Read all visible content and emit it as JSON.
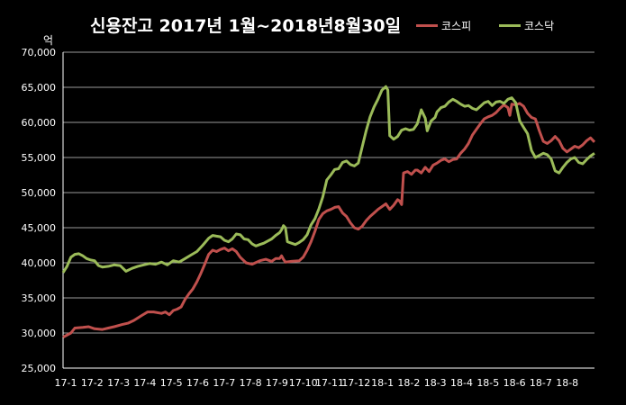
{
  "chart_data": {
    "type": "line",
    "title": "신용잔고 2017년 1월~2018년8월30일",
    "unit_label": "억",
    "ylim": [
      25000,
      70000
    ],
    "yticks": [
      "25,000",
      "30,000",
      "35,000",
      "40,000",
      "45,000",
      "50,000",
      "55,000",
      "60,000",
      "65,000",
      "70,000"
    ],
    "ytick_values": [
      25000,
      30000,
      35000,
      40000,
      45000,
      50000,
      55000,
      60000,
      65000,
      70000
    ],
    "xticks": [
      "17-1",
      "17-2",
      "17-3",
      "17-4",
      "17-5",
      "17-6",
      "17-7",
      "17-8",
      "17-9",
      "17-10",
      "17-11",
      "17-12",
      "18-1",
      "18-2",
      "18-3",
      "18-4",
      "18-5",
      "18-6",
      "18-7",
      "18-8"
    ],
    "grid": true,
    "legend_position": "top-right",
    "series": [
      {
        "name": "코스피",
        "color": "#c0504d",
        "values": [
          [
            0,
            29400
          ],
          [
            0.4,
            30000
          ],
          [
            0.6,
            30700
          ],
          [
            1,
            30800
          ],
          [
            1.3,
            30900
          ],
          [
            1.6,
            30600
          ],
          [
            2,
            30500
          ],
          [
            2.3,
            30700
          ],
          [
            2.6,
            30900
          ],
          [
            3,
            31200
          ],
          [
            3.3,
            31400
          ],
          [
            3.6,
            31800
          ],
          [
            4,
            32500
          ],
          [
            4.3,
            33000
          ],
          [
            4.6,
            33000
          ],
          [
            5,
            32800
          ],
          [
            5.2,
            33000
          ],
          [
            5.4,
            32600
          ],
          [
            5.6,
            33200
          ],
          [
            5.8,
            33400
          ],
          [
            6,
            33700
          ],
          [
            6.2,
            34800
          ],
          [
            6.4,
            35600
          ],
          [
            6.6,
            36300
          ],
          [
            6.8,
            37300
          ],
          [
            7,
            38500
          ],
          [
            7.2,
            39800
          ],
          [
            7.4,
            41200
          ],
          [
            7.6,
            41800
          ],
          [
            7.8,
            41600
          ],
          [
            8,
            41900
          ],
          [
            8.2,
            42100
          ],
          [
            8.4,
            41700
          ],
          [
            8.6,
            42000
          ],
          [
            8.8,
            41600
          ],
          [
            9,
            40800
          ],
          [
            9.3,
            40000
          ],
          [
            9.6,
            39800
          ],
          [
            10,
            40300
          ],
          [
            10.3,
            40500
          ],
          [
            10.6,
            40200
          ],
          [
            10.8,
            40600
          ],
          [
            11,
            40600
          ],
          [
            11.1,
            41000
          ],
          [
            11.2,
            40500
          ],
          [
            11.3,
            40100
          ],
          [
            11.6,
            40200
          ],
          [
            12,
            40300
          ],
          [
            12.2,
            40800
          ],
          [
            12.4,
            41800
          ],
          [
            12.6,
            43000
          ],
          [
            12.8,
            44500
          ],
          [
            13,
            46200
          ],
          [
            13.2,
            47000
          ],
          [
            13.4,
            47400
          ],
          [
            13.6,
            47600
          ],
          [
            13.8,
            47900
          ],
          [
            14,
            48000
          ],
          [
            14.2,
            47100
          ],
          [
            14.4,
            46600
          ],
          [
            14.6,
            45700
          ],
          [
            14.8,
            45000
          ],
          [
            15,
            44800
          ],
          [
            15.2,
            45200
          ],
          [
            15.4,
            46000
          ],
          [
            15.6,
            46600
          ],
          [
            15.8,
            47100
          ],
          [
            16,
            47600
          ],
          [
            16.2,
            48000
          ],
          [
            16.4,
            48400
          ],
          [
            16.6,
            47600
          ],
          [
            16.8,
            48200
          ],
          [
            17,
            49000
          ],
          [
            17.1,
            48800
          ],
          [
            17.2,
            48300
          ],
          [
            17.3,
            52800
          ],
          [
            17.5,
            53000
          ],
          [
            17.7,
            52600
          ],
          [
            17.9,
            53200
          ],
          [
            18,
            53200
          ],
          [
            18.2,
            52800
          ],
          [
            18.4,
            53600
          ],
          [
            18.6,
            53000
          ],
          [
            18.8,
            53900
          ],
          [
            19,
            54200
          ],
          [
            19.2,
            54600
          ],
          [
            19.4,
            54800
          ],
          [
            19.6,
            54400
          ],
          [
            19.8,
            54700
          ],
          [
            20,
            54800
          ],
          [
            20.2,
            55600
          ],
          [
            20.4,
            56200
          ],
          [
            20.6,
            57000
          ],
          [
            20.8,
            58200
          ],
          [
            21,
            59000
          ],
          [
            21.2,
            59800
          ],
          [
            21.4,
            60500
          ],
          [
            21.6,
            60800
          ],
          [
            21.8,
            61000
          ],
          [
            22,
            61400
          ],
          [
            22.2,
            62000
          ],
          [
            22.4,
            62500
          ],
          [
            22.6,
            62100
          ],
          [
            22.7,
            61000
          ],
          [
            22.8,
            62600
          ],
          [
            23,
            62500
          ],
          [
            23.2,
            62700
          ],
          [
            23.4,
            62300
          ],
          [
            23.6,
            61300
          ],
          [
            23.8,
            60700
          ],
          [
            24,
            60500
          ],
          [
            24.2,
            58800
          ],
          [
            24.4,
            57300
          ],
          [
            24.6,
            57000
          ],
          [
            24.8,
            57400
          ],
          [
            25,
            58000
          ],
          [
            25.2,
            57400
          ],
          [
            25.4,
            56300
          ],
          [
            25.6,
            55800
          ],
          [
            25.8,
            56200
          ],
          [
            26,
            56600
          ],
          [
            26.2,
            56400
          ],
          [
            26.4,
            56800
          ],
          [
            26.6,
            57400
          ],
          [
            26.8,
            57800
          ],
          [
            27,
            57200
          ]
        ]
      },
      {
        "name": "코스닥",
        "color": "#9bbb59",
        "values": [
          [
            0,
            38600
          ],
          [
            0.2,
            39500
          ],
          [
            0.4,
            40800
          ],
          [
            0.6,
            41200
          ],
          [
            0.8,
            41300
          ],
          [
            1,
            41000
          ],
          [
            1.2,
            40600
          ],
          [
            1.4,
            40400
          ],
          [
            1.6,
            40300
          ],
          [
            1.8,
            39600
          ],
          [
            2,
            39400
          ],
          [
            2.3,
            39500
          ],
          [
            2.6,
            39700
          ],
          [
            2.9,
            39600
          ],
          [
            3.2,
            38800
          ],
          [
            3.5,
            39200
          ],
          [
            3.8,
            39500
          ],
          [
            4.1,
            39700
          ],
          [
            4.4,
            39900
          ],
          [
            4.7,
            39800
          ],
          [
            5,
            40100
          ],
          [
            5.3,
            39700
          ],
          [
            5.6,
            40300
          ],
          [
            5.9,
            40100
          ],
          [
            6.2,
            40600
          ],
          [
            6.5,
            41100
          ],
          [
            6.8,
            41600
          ],
          [
            7.1,
            42500
          ],
          [
            7.4,
            43500
          ],
          [
            7.6,
            43900
          ],
          [
            7.8,
            43800
          ],
          [
            8,
            43700
          ],
          [
            8.2,
            43200
          ],
          [
            8.4,
            43000
          ],
          [
            8.6,
            43400
          ],
          [
            8.8,
            44100
          ],
          [
            9,
            44000
          ],
          [
            9.2,
            43400
          ],
          [
            9.4,
            43300
          ],
          [
            9.6,
            42700
          ],
          [
            9.8,
            42400
          ],
          [
            10,
            42600
          ],
          [
            10.2,
            42800
          ],
          [
            10.4,
            43100
          ],
          [
            10.6,
            43400
          ],
          [
            10.8,
            43900
          ],
          [
            11,
            44300
          ],
          [
            11.1,
            44700
          ],
          [
            11.2,
            45300
          ],
          [
            11.3,
            45000
          ],
          [
            11.4,
            43000
          ],
          [
            11.6,
            42800
          ],
          [
            11.8,
            42600
          ],
          [
            12,
            42900
          ],
          [
            12.2,
            43300
          ],
          [
            12.4,
            44000
          ],
          [
            12.6,
            45400
          ],
          [
            12.8,
            46300
          ],
          [
            13,
            47700
          ],
          [
            13.2,
            49400
          ],
          [
            13.4,
            51800
          ],
          [
            13.6,
            52500
          ],
          [
            13.8,
            53300
          ],
          [
            14,
            53400
          ],
          [
            14.2,
            54300
          ],
          [
            14.4,
            54500
          ],
          [
            14.6,
            54000
          ],
          [
            14.8,
            53800
          ],
          [
            15,
            54200
          ],
          [
            15.2,
            56500
          ],
          [
            15.4,
            58800
          ],
          [
            15.6,
            60800
          ],
          [
            15.8,
            62200
          ],
          [
            16,
            63300
          ],
          [
            16.2,
            64600
          ],
          [
            16.4,
            65100
          ],
          [
            16.5,
            64600
          ],
          [
            16.6,
            58100
          ],
          [
            16.8,
            57600
          ],
          [
            17,
            58000
          ],
          [
            17.2,
            58900
          ],
          [
            17.4,
            59100
          ],
          [
            17.6,
            58900
          ],
          [
            17.8,
            59000
          ],
          [
            18,
            59800
          ],
          [
            18.2,
            61800
          ],
          [
            18.4,
            60600
          ],
          [
            18.5,
            58800
          ],
          [
            18.7,
            60200
          ],
          [
            18.9,
            60700
          ],
          [
            19,
            61500
          ],
          [
            19.2,
            62100
          ],
          [
            19.4,
            62300
          ],
          [
            19.6,
            62900
          ],
          [
            19.8,
            63300
          ],
          [
            20,
            63000
          ],
          [
            20.2,
            62600
          ],
          [
            20.4,
            62300
          ],
          [
            20.6,
            62400
          ],
          [
            20.8,
            62000
          ],
          [
            21,
            61800
          ],
          [
            21.2,
            62300
          ],
          [
            21.4,
            62800
          ],
          [
            21.6,
            63000
          ],
          [
            21.8,
            62400
          ],
          [
            22,
            62900
          ],
          [
            22.2,
            63000
          ],
          [
            22.4,
            62700
          ],
          [
            22.6,
            63300
          ],
          [
            22.8,
            63500
          ],
          [
            23,
            62800
          ],
          [
            23.2,
            60200
          ],
          [
            23.4,
            59300
          ],
          [
            23.6,
            58400
          ],
          [
            23.8,
            56000
          ],
          [
            24,
            55000
          ],
          [
            24.2,
            55300
          ],
          [
            24.4,
            55600
          ],
          [
            24.6,
            55400
          ],
          [
            24.8,
            54800
          ],
          [
            25,
            53100
          ],
          [
            25.2,
            52800
          ],
          [
            25.4,
            53600
          ],
          [
            25.6,
            54300
          ],
          [
            25.8,
            54800
          ],
          [
            26,
            55000
          ],
          [
            26.2,
            54300
          ],
          [
            26.4,
            54100
          ],
          [
            26.6,
            54700
          ],
          [
            26.8,
            55200
          ],
          [
            27,
            55600
          ]
        ]
      }
    ]
  }
}
